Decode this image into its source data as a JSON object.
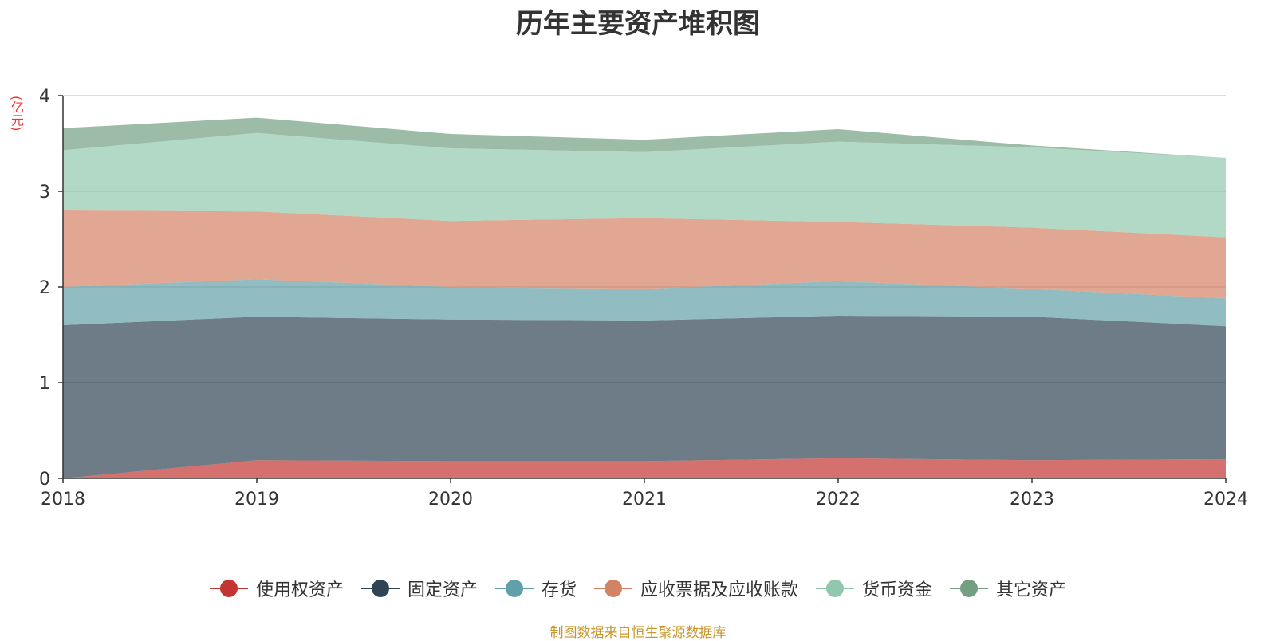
{
  "chart_data": {
    "type": "area",
    "stacked": true,
    "title": "历年主要资产堆积图",
    "unit_label": "(亿元)",
    "x": [
      "2018",
      "2019",
      "2020",
      "2021",
      "2022",
      "2023",
      "2024"
    ],
    "ylim": [
      0,
      4
    ],
    "yticks": [
      "0",
      "1",
      "2",
      "3",
      "4"
    ],
    "grid": true,
    "legend_position": "bottom",
    "series": [
      {
        "name": "使用权资产",
        "color": "#c23531",
        "values": [
          0.0,
          0.19,
          0.18,
          0.18,
          0.21,
          0.19,
          0.2
        ]
      },
      {
        "name": "固定资产",
        "color": "#2f4554",
        "values": [
          1.6,
          1.5,
          1.48,
          1.47,
          1.49,
          1.5,
          1.39
        ]
      },
      {
        "name": "存货",
        "color": "#61a0a8",
        "values": [
          0.4,
          0.39,
          0.34,
          0.33,
          0.36,
          0.29,
          0.29
        ]
      },
      {
        "name": "应收票据及应收账款",
        "color": "#d48265",
        "values": [
          0.8,
          0.71,
          0.69,
          0.74,
          0.62,
          0.64,
          0.64
        ]
      },
      {
        "name": "货币资金",
        "color": "#91c7ae",
        "values": [
          0.63,
          0.82,
          0.76,
          0.69,
          0.84,
          0.84,
          0.83
        ]
      },
      {
        "name": "其它资产",
        "color": "#749f83",
        "values": [
          0.23,
          0.16,
          0.15,
          0.13,
          0.13,
          0.02,
          0.0
        ]
      }
    ]
  },
  "source_note": "制图数据来自恒生聚源数据库"
}
